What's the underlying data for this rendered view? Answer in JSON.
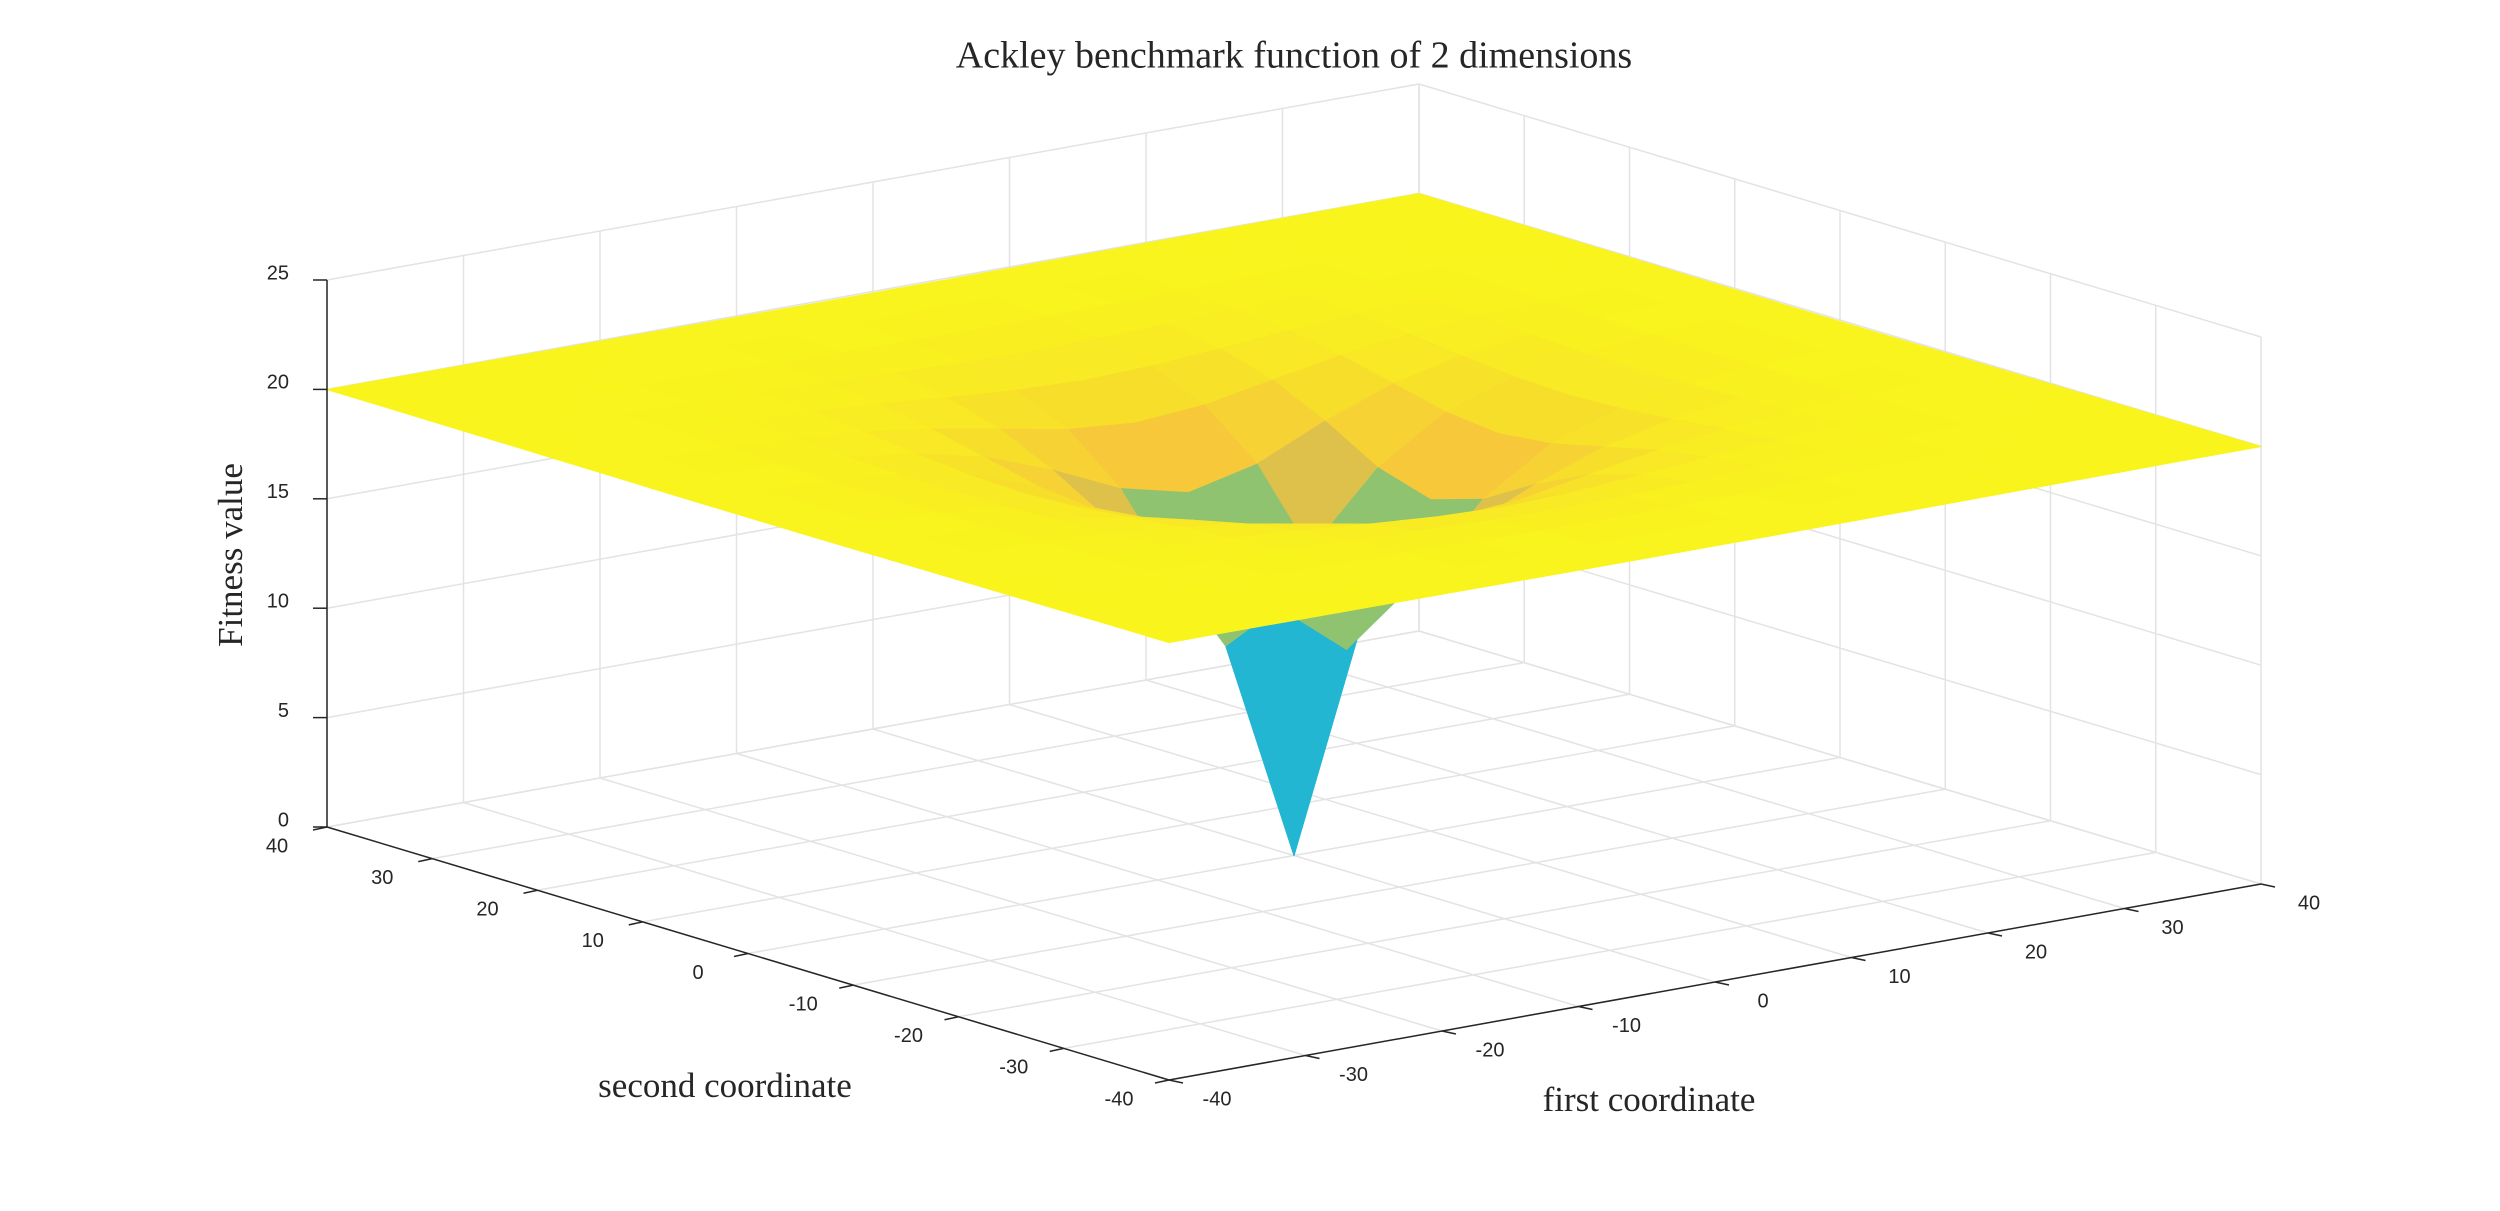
{
  "chart_data": {
    "type": "surface3d",
    "title": "Ackley benchmark function of 2 dimensions",
    "xlabel": "first coordinate",
    "ylabel": "second coordinate",
    "zlabel": "Fitness value",
    "x": [
      -40,
      -35,
      -30,
      -25,
      -20,
      -15,
      -10,
      -5,
      0,
      5,
      10,
      15,
      20,
      25,
      30,
      35,
      40
    ],
    "y": [
      -40,
      -35,
      -30,
      -25,
      -20,
      -15,
      -10,
      -5,
      0,
      5,
      10,
      15,
      20,
      25,
      30,
      35,
      40
    ],
    "z": [
      [
        19.99,
        19.99,
        19.98,
        19.97,
        19.96,
        19.95,
        19.94,
        19.93,
        19.93,
        19.93,
        19.94,
        19.95,
        19.96,
        19.97,
        19.98,
        19.99,
        19.99
      ],
      [
        19.99,
        19.98,
        19.97,
        19.95,
        19.93,
        19.91,
        19.88,
        19.87,
        19.86,
        19.87,
        19.88,
        19.91,
        19.93,
        19.95,
        19.97,
        19.98,
        19.99
      ],
      [
        19.98,
        19.97,
        19.95,
        19.92,
        19.88,
        19.83,
        19.77,
        19.73,
        19.71,
        19.73,
        19.77,
        19.83,
        19.88,
        19.92,
        19.95,
        19.97,
        19.98
      ],
      [
        19.97,
        19.95,
        19.92,
        19.87,
        19.78,
        19.68,
        19.56,
        19.46,
        19.42,
        19.46,
        19.56,
        19.68,
        19.78,
        19.87,
        19.92,
        19.95,
        19.97
      ],
      [
        19.96,
        19.93,
        19.88,
        19.78,
        19.63,
        19.42,
        19.15,
        18.92,
        18.82,
        18.92,
        19.15,
        19.42,
        19.63,
        19.78,
        19.88,
        19.93,
        19.96
      ],
      [
        19.95,
        19.91,
        19.83,
        19.68,
        19.42,
        19.0,
        18.44,
        17.86,
        17.6,
        17.86,
        18.44,
        19.0,
        19.42,
        19.68,
        19.83,
        19.91,
        19.95
      ],
      [
        19.94,
        19.88,
        19.77,
        19.56,
        19.15,
        18.44,
        17.29,
        15.88,
        15.14,
        15.88,
        17.29,
        18.44,
        19.15,
        19.56,
        19.77,
        19.88,
        19.94
      ],
      [
        19.93,
        19.87,
        19.73,
        19.46,
        18.92,
        17.86,
        15.88,
        12.64,
        10.14,
        12.64,
        15.88,
        17.86,
        18.92,
        19.46,
        19.73,
        19.87,
        19.93
      ],
      [
        19.93,
        19.86,
        19.71,
        19.42,
        18.82,
        17.6,
        15.14,
        10.14,
        0,
        10.14,
        15.14,
        17.6,
        18.82,
        19.42,
        19.71,
        19.86,
        19.93
      ],
      [
        19.93,
        19.87,
        19.73,
        19.46,
        18.92,
        17.86,
        15.88,
        12.64,
        10.14,
        12.64,
        15.88,
        17.86,
        18.92,
        19.46,
        19.73,
        19.87,
        19.93
      ],
      [
        19.94,
        19.88,
        19.77,
        19.56,
        19.15,
        18.44,
        17.29,
        15.88,
        15.14,
        15.88,
        17.29,
        18.44,
        19.15,
        19.56,
        19.77,
        19.88,
        19.94
      ],
      [
        19.95,
        19.91,
        19.83,
        19.68,
        19.42,
        19.0,
        18.44,
        17.86,
        17.6,
        17.86,
        18.44,
        19.0,
        19.42,
        19.68,
        19.83,
        19.91,
        19.95
      ],
      [
        19.96,
        19.93,
        19.88,
        19.78,
        19.63,
        19.42,
        19.15,
        18.92,
        18.82,
        18.92,
        19.15,
        19.42,
        19.63,
        19.78,
        19.88,
        19.93,
        19.96
      ],
      [
        19.97,
        19.95,
        19.92,
        19.87,
        19.78,
        19.68,
        19.56,
        19.46,
        19.42,
        19.46,
        19.56,
        19.68,
        19.78,
        19.87,
        19.92,
        19.95,
        19.97
      ],
      [
        19.98,
        19.97,
        19.95,
        19.92,
        19.88,
        19.83,
        19.77,
        19.73,
        19.71,
        19.73,
        19.77,
        19.83,
        19.88,
        19.92,
        19.95,
        19.97,
        19.98
      ],
      [
        19.99,
        19.98,
        19.97,
        19.95,
        19.93,
        19.91,
        19.88,
        19.87,
        19.86,
        19.87,
        19.88,
        19.91,
        19.93,
        19.95,
        19.97,
        19.98,
        19.99
      ],
      [
        19.99,
        19.99,
        19.98,
        19.97,
        19.96,
        19.95,
        19.94,
        19.93,
        19.93,
        19.93,
        19.94,
        19.95,
        19.96,
        19.97,
        19.98,
        19.99,
        19.99
      ]
    ],
    "xlim": [
      -40,
      40
    ],
    "ylim": [
      -40,
      40
    ],
    "zlim": [
      0,
      25
    ],
    "xticks": [
      -40,
      -30,
      -20,
      -10,
      0,
      10,
      20,
      30,
      40
    ],
    "yticks": [
      -40,
      -30,
      -20,
      -10,
      0,
      10,
      20,
      30,
      40
    ],
    "zticks": [
      0,
      5,
      10,
      15,
      20,
      25
    ],
    "grid": true,
    "colormap": [
      "#5d4cf2",
      "#3f86f0",
      "#1fb5d6",
      "#57c48c",
      "#f5c040",
      "#f9f51c"
    ],
    "clim": [
      0,
      20
    ]
  }
}
